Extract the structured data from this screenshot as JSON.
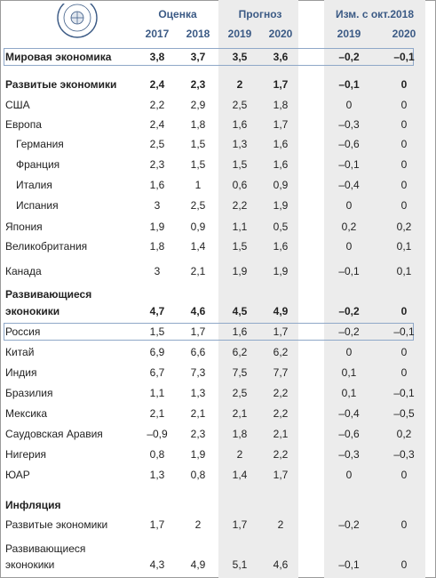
{
  "header": {
    "estimate_label": "Оценка",
    "forecast_label": "Прогноз",
    "change_label": "Изм. с окт.2018",
    "years": [
      "2017",
      "2018",
      "2019",
      "2020",
      "2019",
      "2020"
    ]
  },
  "rows": [
    {
      "label": "Мировая экономика",
      "values": [
        "3,8",
        "3,7",
        "3,5",
        "3,6",
        "–0,2",
        "–0,1"
      ]
    },
    {
      "label": "Развитые экономики",
      "values": [
        "2,4",
        "2,3",
        "2",
        "1,7",
        "–0,1",
        "0"
      ]
    },
    {
      "label": "США",
      "values": [
        "2,2",
        "2,9",
        "2,5",
        "1,8",
        "0",
        "0"
      ]
    },
    {
      "label": "Европа",
      "values": [
        "2,4",
        "1,8",
        "1,6",
        "1,7",
        "–0,3",
        "0"
      ]
    },
    {
      "label": "Германия",
      "values": [
        "2,5",
        "1,5",
        "1,3",
        "1,6",
        "–0,6",
        "0"
      ]
    },
    {
      "label": "Франция",
      "values": [
        "2,3",
        "1,5",
        "1,5",
        "1,6",
        "–0,1",
        "0"
      ]
    },
    {
      "label": "Италия",
      "values": [
        "1,6",
        "1",
        "0,6",
        "0,9",
        "–0,4",
        "0"
      ]
    },
    {
      "label": "Испания",
      "values": [
        "3",
        "2,5",
        "2,2",
        "1,9",
        "0",
        "0"
      ]
    },
    {
      "label": "Япония",
      "values": [
        "1,9",
        "0,9",
        "1,1",
        "0,5",
        "0,2",
        "0,2"
      ]
    },
    {
      "label": "Великобритания",
      "values": [
        "1,8",
        "1,4",
        "1,5",
        "1,6",
        "0",
        "0,1"
      ]
    },
    {
      "label": "Канада",
      "values": [
        "3",
        "2,1",
        "1,9",
        "1,9",
        "–0,1",
        "0,1"
      ]
    },
    {
      "label_line1": "Развивающиеся",
      "label_line2": "эконокики",
      "values": [
        "4,7",
        "4,6",
        "4,5",
        "4,9",
        "–0,2",
        "0"
      ]
    },
    {
      "label": "Россия",
      "values": [
        "1,5",
        "1,7",
        "1,6",
        "1,7",
        "–0,2",
        "–0,1"
      ]
    },
    {
      "label": "Китай",
      "values": [
        "6,9",
        "6,6",
        "6,2",
        "6,2",
        "0",
        "0"
      ]
    },
    {
      "label": "Индия",
      "values": [
        "6,7",
        "7,3",
        "7,5",
        "7,7",
        "0,1",
        "0"
      ]
    },
    {
      "label": "Бразилия",
      "values": [
        "1,1",
        "1,3",
        "2,5",
        "2,2",
        "0,1",
        "–0,1"
      ]
    },
    {
      "label": "Мексика",
      "values": [
        "2,1",
        "2,1",
        "2,1",
        "2,2",
        "–0,4",
        "–0,5"
      ]
    },
    {
      "label": "Саудовская Аравия",
      "values": [
        "–0,9",
        "2,3",
        "1,8",
        "2,1",
        "–0,6",
        "0,2"
      ]
    },
    {
      "label": "Нигерия",
      "values": [
        "0,8",
        "1,9",
        "2",
        "2,2",
        "–0,3",
        "–0,3"
      ]
    },
    {
      "label": "ЮАР",
      "values": [
        "1,3",
        "0,8",
        "1,4",
        "1,7",
        "0",
        "0"
      ]
    },
    {
      "label": "Инфляция"
    },
    {
      "label": "Развитые экономики",
      "values": [
        "1,7",
        "2",
        "1,7",
        "2",
        "–0,2",
        "0"
      ]
    },
    {
      "label_line1": "Развивающиеся",
      "label_line2": "эконокики",
      "values": [
        "4,3",
        "4,9",
        "5,1",
        "4,6",
        "–0,1",
        "0"
      ]
    }
  ]
}
